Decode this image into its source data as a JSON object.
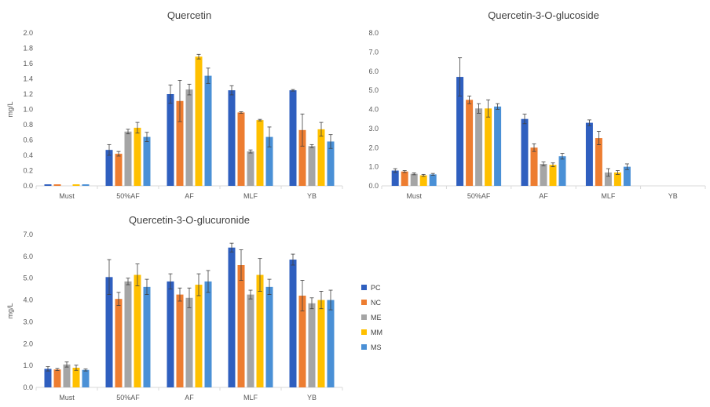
{
  "colors": {
    "PC": "#2f5fbf",
    "NC": "#ed7d31",
    "ME": "#a5a5a5",
    "MM": "#ffc000",
    "MS": "#4a90d6"
  },
  "legend": [
    "PC",
    "NC",
    "ME",
    "MM",
    "MS"
  ],
  "chart_data": [
    {
      "type": "bar",
      "title": "Quercetin",
      "ylabel": "mg/L",
      "ylim": [
        0,
        2.0
      ],
      "yticks": [
        "0.0",
        "0.2",
        "0.4",
        "0.6",
        "0.8",
        "1.0",
        "1.2",
        "1.4",
        "1.6",
        "1.8",
        "2.0"
      ],
      "categories": [
        "Must",
        "50%AF",
        "AF",
        "MLF",
        "YB"
      ],
      "series": [
        {
          "name": "PC",
          "values": [
            0.02,
            0.47,
            1.2,
            1.25,
            1.25
          ],
          "errors": [
            0.0,
            0.07,
            0.12,
            0.06,
            0.01
          ]
        },
        {
          "name": "NC",
          "values": [
            0.02,
            0.42,
            1.11,
            0.96,
            0.73
          ],
          "errors": [
            0.0,
            0.03,
            0.27,
            0.01,
            0.21
          ]
        },
        {
          "name": "ME",
          "values": [
            0.0,
            0.71,
            1.26,
            0.45,
            0.52
          ],
          "errors": [
            0.0,
            0.03,
            0.07,
            0.02,
            0.02
          ]
        },
        {
          "name": "MM",
          "values": [
            0.02,
            0.76,
            1.69,
            0.86,
            0.74
          ],
          "errors": [
            0.0,
            0.07,
            0.03,
            0.01,
            0.09
          ]
        },
        {
          "name": "MS",
          "values": [
            0.02,
            0.64,
            1.44,
            0.64,
            0.58
          ],
          "errors": [
            0.0,
            0.06,
            0.1,
            0.13,
            0.09
          ]
        }
      ]
    },
    {
      "type": "bar",
      "title": "Quercetin-3-O-glucoside",
      "ylabel": "",
      "ylim": [
        0,
        8.0
      ],
      "yticks": [
        "0.0",
        "1.0",
        "2.0",
        "3.0",
        "4.0",
        "5.0",
        "6.0",
        "7.0",
        "8.0"
      ],
      "categories": [
        "Must",
        "50%AF",
        "AF",
        "MLF",
        "YB"
      ],
      "series": [
        {
          "name": "PC",
          "values": [
            0.8,
            5.7,
            3.5,
            3.3,
            0
          ],
          "errors": [
            0.1,
            1.0,
            0.25,
            0.15,
            0
          ]
        },
        {
          "name": "NC",
          "values": [
            0.75,
            4.5,
            2.0,
            2.5,
            0
          ],
          "errors": [
            0.05,
            0.2,
            0.2,
            0.35,
            0
          ]
        },
        {
          "name": "ME",
          "values": [
            0.63,
            4.05,
            1.15,
            0.7,
            0
          ],
          "errors": [
            0.05,
            0.25,
            0.1,
            0.2,
            0
          ]
        },
        {
          "name": "MM",
          "values": [
            0.55,
            4.05,
            1.1,
            0.7,
            0
          ],
          "errors": [
            0.05,
            0.45,
            0.1,
            0.1,
            0
          ]
        },
        {
          "name": "MS",
          "values": [
            0.6,
            4.15,
            1.55,
            1.0,
            0
          ],
          "errors": [
            0.05,
            0.15,
            0.15,
            0.15,
            0
          ]
        }
      ]
    },
    {
      "type": "bar",
      "title": "Quercetin-3-O-glucuronide",
      "ylabel": "mg/L",
      "ylim": [
        0,
        7.0
      ],
      "yticks": [
        "0.0",
        "1.0",
        "2.0",
        "3.0",
        "4.0",
        "5.0",
        "6.0",
        "7.0"
      ],
      "categories": [
        "Must",
        "50%AF",
        "AF",
        "MLF",
        "YB"
      ],
      "series": [
        {
          "name": "PC",
          "values": [
            0.85,
            5.05,
            4.85,
            6.4,
            5.85
          ],
          "errors": [
            0.1,
            0.8,
            0.35,
            0.2,
            0.25
          ]
        },
        {
          "name": "NC",
          "values": [
            0.82,
            4.05,
            4.25,
            5.6,
            4.2
          ],
          "errors": [
            0.05,
            0.3,
            0.3,
            0.7,
            0.7
          ]
        },
        {
          "name": "ME",
          "values": [
            1.05,
            4.85,
            4.1,
            4.25,
            3.85
          ],
          "errors": [
            0.12,
            0.15,
            0.45,
            0.2,
            0.25
          ]
        },
        {
          "name": "MM",
          "values": [
            0.9,
            5.15,
            4.7,
            5.15,
            4.0
          ],
          "errors": [
            0.12,
            0.5,
            0.5,
            0.75,
            0.4
          ]
        },
        {
          "name": "MS",
          "values": [
            0.8,
            4.6,
            4.85,
            4.6,
            4.0
          ],
          "errors": [
            0.05,
            0.35,
            0.5,
            0.35,
            0.45
          ]
        }
      ]
    }
  ]
}
